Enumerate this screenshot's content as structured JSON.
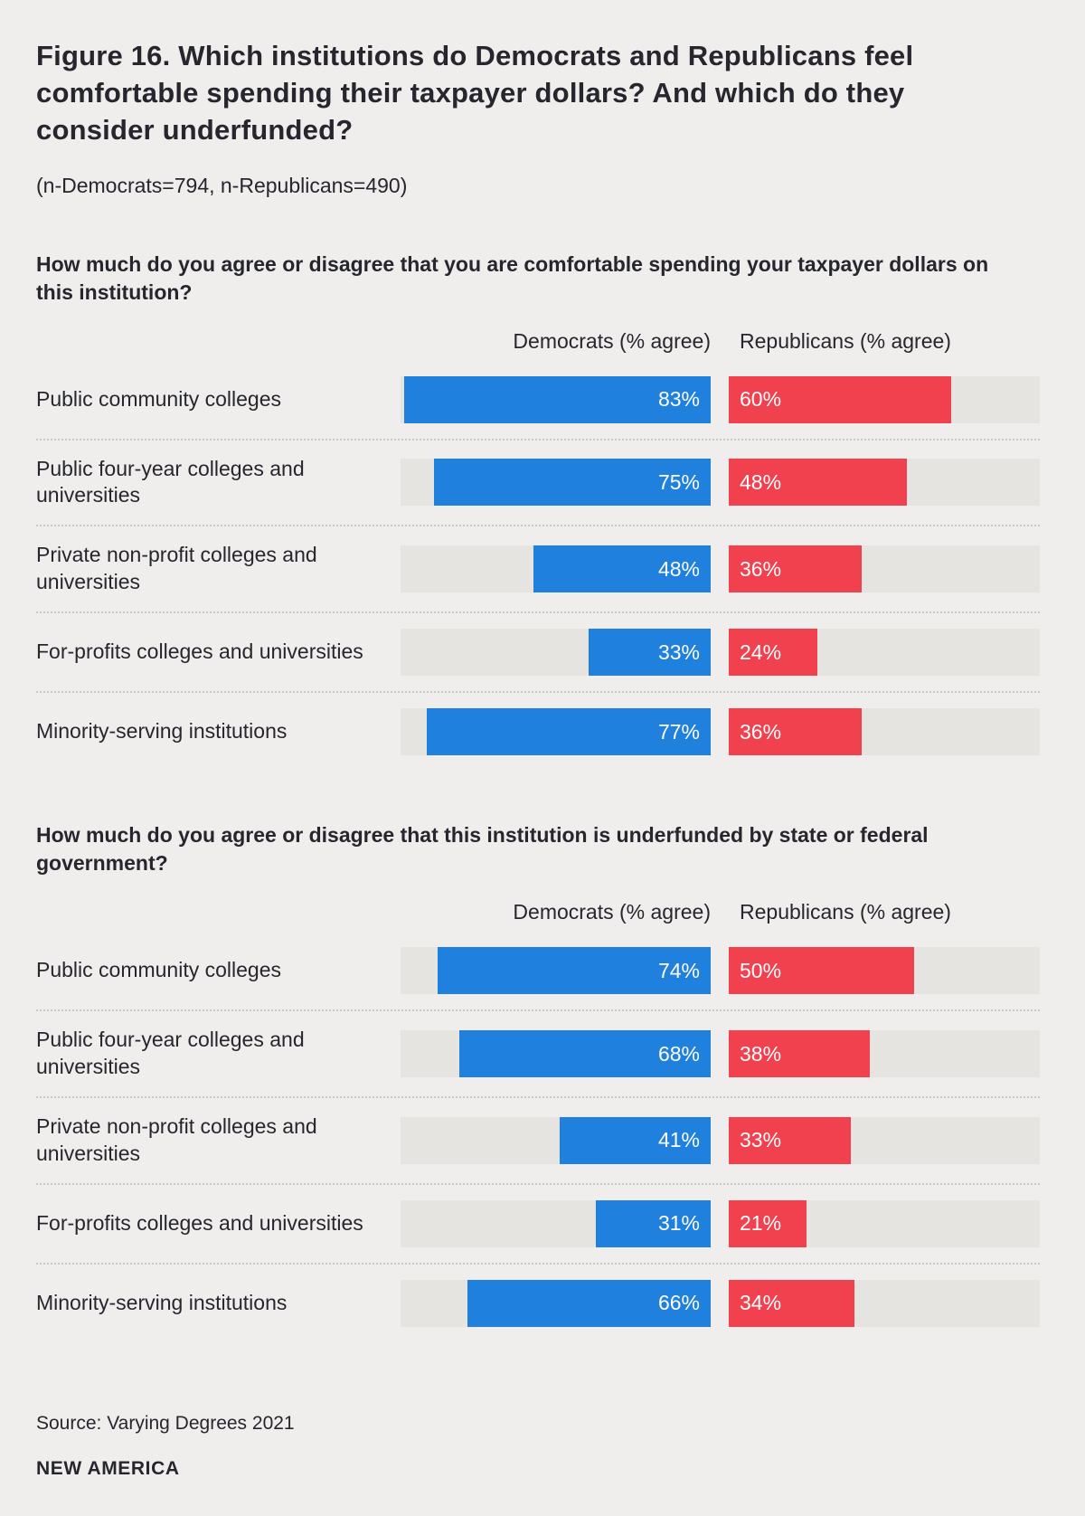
{
  "page": {
    "title": "Figure 16. Which institutions do Democrats and Republicans feel comfortable spending their taxpayer dollars? And which do they consider underfunded?",
    "subtitle": "(n-Democrats=794, n-Republicans=490)",
    "source": "Source: Varying Degrees 2021",
    "brand": "NEW AMERICA"
  },
  "colors": {
    "democrat_bar": "#1f80dd",
    "republican_bar": "#f2414e",
    "bar_track": "#e5e4e1",
    "background": "#efeeec",
    "text": "#27262e"
  },
  "chart_data": [
    {
      "type": "bar",
      "title": "How much do you agree or disagree that you are comfortable spending your taxpayer dollars on this institution?",
      "legend": [
        "Democrats (% agree)",
        "Republicans (% agree)"
      ],
      "categories": [
        "Public community colleges",
        "Public four-year colleges and universities",
        "Private non-profit colleges and universities",
        "For-profits colleges and universities",
        "Minority-serving institutions"
      ],
      "series": [
        {
          "name": "Democrats (% agree)",
          "values": [
            83,
            75,
            48,
            33,
            77
          ]
        },
        {
          "name": "Republicans (% agree)",
          "values": [
            60,
            48,
            36,
            24,
            36
          ]
        }
      ],
      "value_suffix": "%",
      "xlim": [
        0,
        84
      ],
      "layout": "democrat bars right-aligned, republican bars left-aligned, labels inside bars"
    },
    {
      "type": "bar",
      "title": "How much do you agree or disagree that this institution is underfunded by state or federal government?",
      "legend": [
        "Democrats (% agree)",
        "Republicans (% agree)"
      ],
      "categories": [
        "Public community colleges",
        "Public four-year colleges and universities",
        "Private non-profit colleges and universities",
        "For-profits colleges and universities",
        "Minority-serving institutions"
      ],
      "series": [
        {
          "name": "Democrats (% agree)",
          "values": [
            74,
            68,
            41,
            31,
            66
          ]
        },
        {
          "name": "Republicans (% agree)",
          "values": [
            50,
            38,
            33,
            21,
            34
          ]
        }
      ],
      "value_suffix": "%",
      "xlim": [
        0,
        84
      ],
      "layout": "democrat bars right-aligned, republican bars left-aligned, labels inside bars"
    }
  ]
}
